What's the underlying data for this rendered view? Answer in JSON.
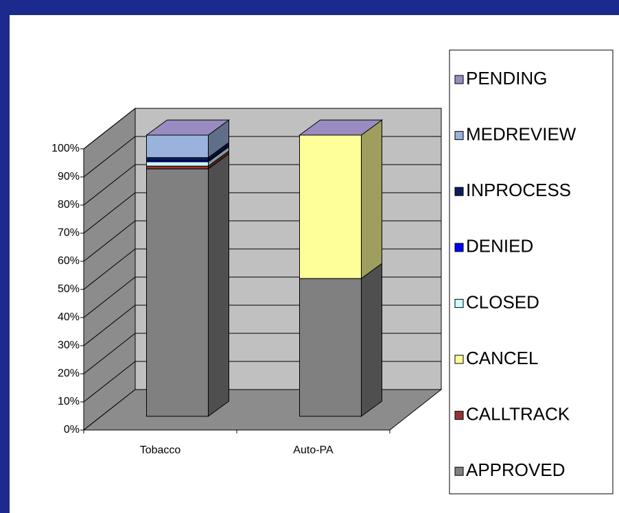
{
  "chart_data": {
    "type": "bar3d_stacked",
    "categories": [
      "Tobacco",
      "Auto-PA"
    ],
    "series": [
      {
        "name": "APPROVED",
        "color": "#808080",
        "values": [
          88,
          49
        ]
      },
      {
        "name": "CALLTRACK",
        "color": "#993333",
        "values": [
          1,
          0
        ]
      },
      {
        "name": "CANCEL",
        "color": "#ffff99",
        "values": [
          0,
          51
        ]
      },
      {
        "name": "CLOSED",
        "color": "#ccffff",
        "values": [
          1.5,
          0
        ]
      },
      {
        "name": "DENIED",
        "color": "#0000ff",
        "values": [
          0.5,
          0
        ]
      },
      {
        "name": "INPROCESS",
        "color": "#0a1f5c",
        "values": [
          1,
          0
        ]
      },
      {
        "name": "MEDREVIEW",
        "color": "#99b3dd",
        "values": [
          8,
          0
        ]
      },
      {
        "name": "PENDING",
        "color": "#9a8cc0",
        "values": [
          0,
          0
        ]
      }
    ],
    "ylim": [
      0,
      100
    ],
    "yticks": [
      {
        "value": 0,
        "label": "0%"
      },
      {
        "value": 10,
        "label": "10%"
      },
      {
        "value": 20,
        "label": "20%"
      },
      {
        "value": 30,
        "label": "30%"
      },
      {
        "value": 40,
        "label": "40%"
      },
      {
        "value": 50,
        "label": "50%"
      },
      {
        "value": 60,
        "label": "60%"
      },
      {
        "value": 70,
        "label": "70%"
      },
      {
        "value": 80,
        "label": "80%"
      },
      {
        "value": 90,
        "label": "90%"
      },
      {
        "value": 100,
        "label": "100%"
      }
    ],
    "grid": true,
    "legend": "right"
  }
}
